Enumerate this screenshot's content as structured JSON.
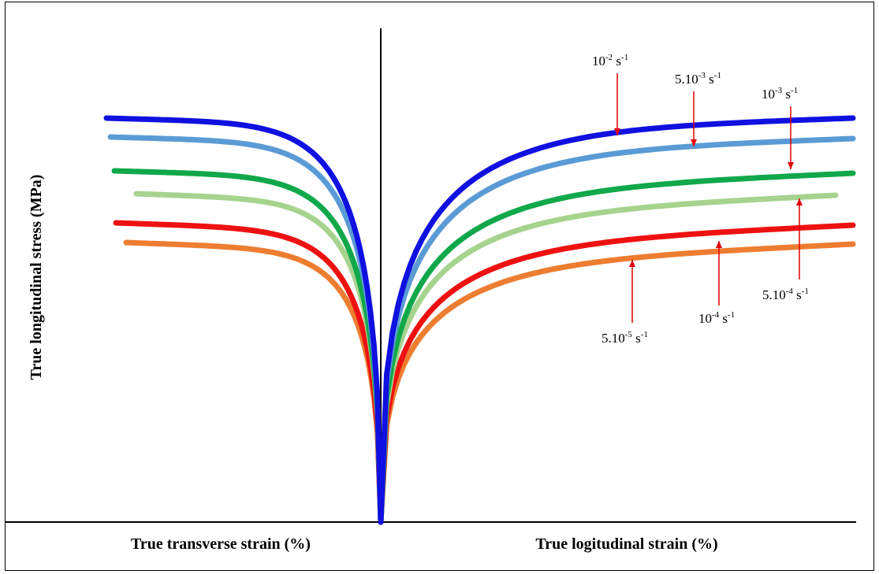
{
  "chart_data": {
    "type": "line",
    "title": "",
    "xlabel_left": "True transverse strain (%)",
    "xlabel_right": "True logitudinal strain (%)",
    "ylabel": "True longitudinal stress  (MPa)",
    "grid": false,
    "legend": "none",
    "series": [
      {
        "name": "10-2 s-1",
        "label_base": "10",
        "label_exp": "-2",
        "label_unit_exp": "-1",
        "color": "#1010e0"
      },
      {
        "name": "5.10-3 s-1",
        "label_base": "5.10",
        "label_exp": "-3",
        "label_unit_exp": "-1",
        "color": "#5b9bd5"
      },
      {
        "name": "10-3 s-1",
        "label_base": "10",
        "label_exp": "-3",
        "label_unit_exp": "-1",
        "color": "#10a84a"
      },
      {
        "name": "5.10-4 s-1",
        "label_base": "5.10",
        "label_exp": "-4",
        "label_unit_exp": "-1",
        "color": "#a6d38e"
      },
      {
        "name": "10-4 s-1",
        "label_base": "10",
        "label_exp": "-4",
        "label_unit_exp": "-1",
        "color": "#ee1111"
      },
      {
        "name": "5.10-5 s-1",
        "label_base": "5.10",
        "label_exp": "-5",
        "label_unit_exp": "-1",
        "color": "#ed7d31"
      }
    ],
    "unit_text": "s"
  }
}
